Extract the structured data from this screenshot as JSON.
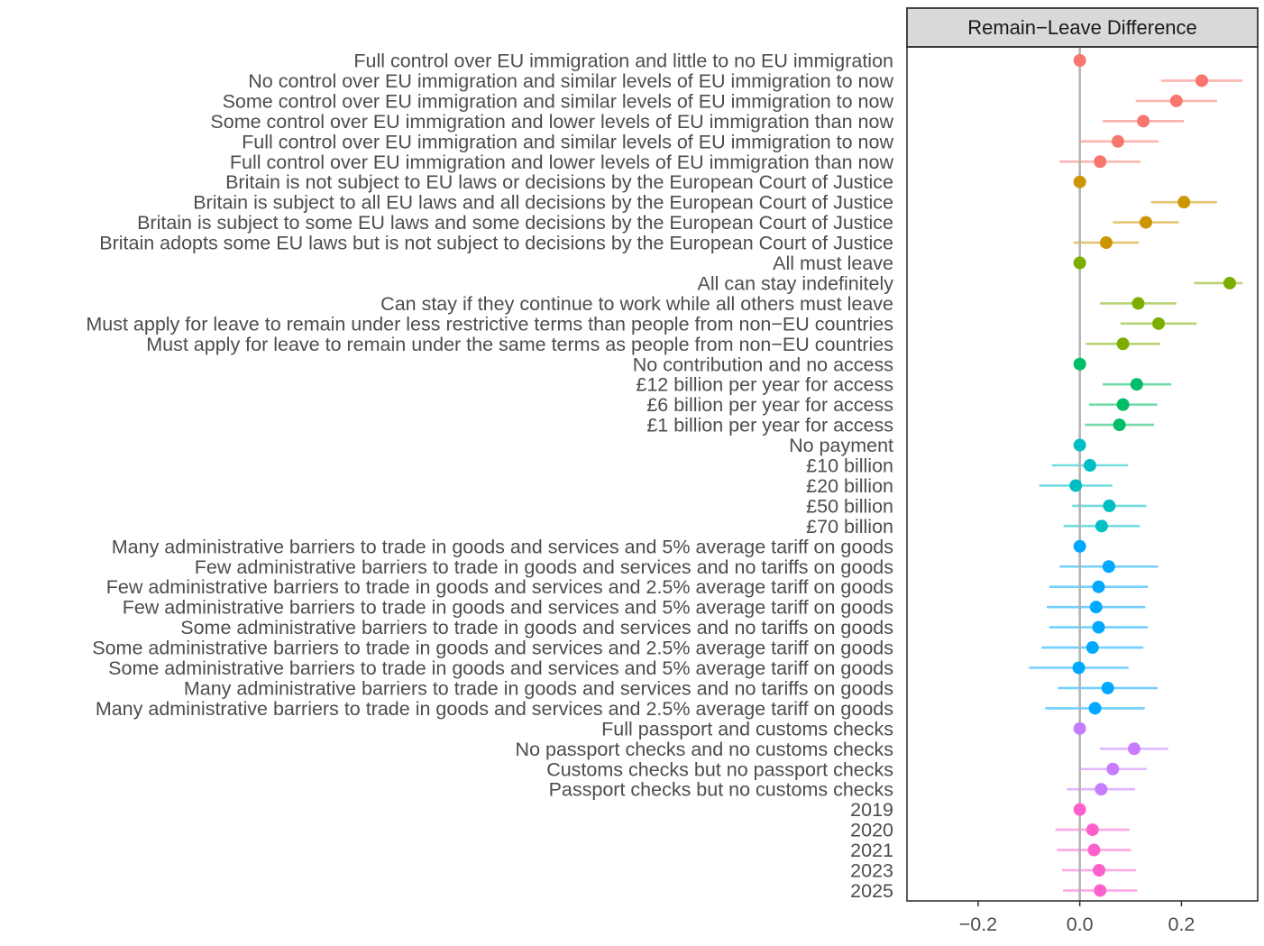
{
  "chart_data": {
    "type": "scatter",
    "title": "",
    "facet_label": "Remain−Leave Difference",
    "xlabel": "",
    "ylabel": "",
    "xlim": [
      -0.34,
      0.35
    ],
    "x_ticks": [
      -0.2,
      0.0,
      0.2
    ],
    "x_tick_labels": [
      "−0.2",
      "0.0",
      "0.2"
    ],
    "reference_line_x": 0,
    "grid": false,
    "legend": "none",
    "groups": [
      {
        "color": "#F8766D",
        "items": [
          {
            "label": "Full control over EU immigration and little to no EU immigration",
            "estimate": 0.0,
            "lower": null,
            "upper": null
          },
          {
            "label": "No control over EU immigration and similar levels of EU immigration to now",
            "estimate": 0.24,
            "lower": 0.16,
            "upper": 0.32
          },
          {
            "label": "Some control over EU immigration and similar levels of EU immigration to now",
            "estimate": 0.19,
            "lower": 0.11,
            "upper": 0.27
          },
          {
            "label": "Some control over EU immigration and lower levels of EU immigration than now",
            "estimate": 0.125,
            "lower": 0.045,
            "upper": 0.205
          },
          {
            "label": "Full control over EU immigration and similar levels of EU immigration to now",
            "estimate": 0.075,
            "lower": 0.0,
            "upper": 0.155
          },
          {
            "label": "Full control over EU immigration and lower levels of EU immigration than now",
            "estimate": 0.04,
            "lower": -0.04,
            "upper": 0.12
          }
        ]
      },
      {
        "color": "#CD9600",
        "items": [
          {
            "label": "Britain is not subject to EU laws or decisions by the European Court of Justice",
            "estimate": 0.0,
            "lower": null,
            "upper": null
          },
          {
            "label": "Britain is subject to all EU laws and all decisions by the European Court of Justice",
            "estimate": 0.205,
            "lower": 0.14,
            "upper": 0.27
          },
          {
            "label": "Britain is subject to some EU laws and some decisions by the European Court of Justice",
            "estimate": 0.13,
            "lower": 0.065,
            "upper": 0.195
          },
          {
            "label": "Britain adopts some EU laws but is not subject to decisions by the European Court of Justice",
            "estimate": 0.052,
            "lower": -0.012,
            "upper": 0.116
          }
        ]
      },
      {
        "color": "#7CAE00",
        "items": [
          {
            "label": "All must leave",
            "estimate": 0.0,
            "lower": null,
            "upper": null
          },
          {
            "label": "All can stay indefinitely",
            "estimate": 0.295,
            "lower": 0.225,
            "upper": 0.32
          },
          {
            "label": "Can stay if they continue to work while all others must leave",
            "estimate": 0.115,
            "lower": 0.04,
            "upper": 0.19
          },
          {
            "label": "Must apply for leave to remain under less restrictive terms than people from non−EU countries",
            "estimate": 0.155,
            "lower": 0.08,
            "upper": 0.23
          },
          {
            "label": "Must apply for leave to remain under the same terms as people from non−EU countries",
            "estimate": 0.085,
            "lower": 0.012,
            "upper": 0.158
          }
        ]
      },
      {
        "color": "#00BE67",
        "items": [
          {
            "label": "No contribution and no access",
            "estimate": 0.0,
            "lower": null,
            "upper": null
          },
          {
            "label": "£12 billion per year for access",
            "estimate": 0.112,
            "lower": 0.045,
            "upper": 0.18
          },
          {
            "label": "£6 billion per year for access",
            "estimate": 0.085,
            "lower": 0.018,
            "upper": 0.152
          },
          {
            "label": "£1 billion per year for access",
            "estimate": 0.078,
            "lower": 0.01,
            "upper": 0.146
          }
        ]
      },
      {
        "color": "#00BFC4",
        "items": [
          {
            "label": "No payment",
            "estimate": 0.0,
            "lower": null,
            "upper": null
          },
          {
            "label": "£10 billion",
            "estimate": 0.02,
            "lower": -0.055,
            "upper": 0.095
          },
          {
            "label": "£20 billion",
            "estimate": -0.008,
            "lower": -0.08,
            "upper": 0.064
          },
          {
            "label": "£50 billion",
            "estimate": 0.058,
            "lower": -0.015,
            "upper": 0.131
          },
          {
            "label": "£70 billion",
            "estimate": 0.043,
            "lower": -0.032,
            "upper": 0.118
          }
        ]
      },
      {
        "color": "#00A9FF",
        "items": [
          {
            "label": "Many administrative barriers to trade in goods and services and 5% average tariff on goods",
            "estimate": 0.0,
            "lower": null,
            "upper": null
          },
          {
            "label": "Few administrative barriers to trade in goods and services and no tariffs on goods",
            "estimate": 0.057,
            "lower": -0.04,
            "upper": 0.154
          },
          {
            "label": "Few administrative barriers to trade in goods and services and 2.5% average tariff on goods",
            "estimate": 0.037,
            "lower": -0.06,
            "upper": 0.134
          },
          {
            "label": "Few administrative barriers to trade in goods and services and 5% average tariff on goods",
            "estimate": 0.032,
            "lower": -0.065,
            "upper": 0.129
          },
          {
            "label": "Some administrative barriers to trade in goods and services and no tariffs on goods",
            "estimate": 0.037,
            "lower": -0.06,
            "upper": 0.134
          },
          {
            "label": "Some administrative barriers to trade in goods and services and 2.5% average tariff on goods",
            "estimate": 0.025,
            "lower": -0.075,
            "upper": 0.125
          },
          {
            "label": "Some administrative barriers to trade in goods and services and 5% average tariff on goods",
            "estimate": -0.002,
            "lower": -0.1,
            "upper": 0.096
          },
          {
            "label": "Many administrative barriers to trade in goods and services and no tariffs on goods",
            "estimate": 0.055,
            "lower": -0.043,
            "upper": 0.153
          },
          {
            "label": "Many administrative barriers to trade in goods and services and 2.5% average tariff on goods",
            "estimate": 0.03,
            "lower": -0.068,
            "upper": 0.128
          }
        ]
      },
      {
        "color": "#C77CFF",
        "items": [
          {
            "label": "Full passport and customs checks",
            "estimate": 0.0,
            "lower": null,
            "upper": null
          },
          {
            "label": "No passport checks and no customs checks",
            "estimate": 0.107,
            "lower": 0.04,
            "upper": 0.174
          },
          {
            "label": "Customs checks but no passport checks",
            "estimate": 0.065,
            "lower": -0.002,
            "upper": 0.132
          },
          {
            "label": "Passport checks but no customs checks",
            "estimate": 0.042,
            "lower": -0.025,
            "upper": 0.109
          }
        ]
      },
      {
        "color": "#FF61CC",
        "items": [
          {
            "label": "2019",
            "estimate": 0.0,
            "lower": null,
            "upper": null
          },
          {
            "label": "2020",
            "estimate": 0.025,
            "lower": -0.048,
            "upper": 0.098
          },
          {
            "label": "2021",
            "estimate": 0.028,
            "lower": -0.045,
            "upper": 0.101
          },
          {
            "label": "2023",
            "estimate": 0.038,
            "lower": -0.035,
            "upper": 0.111
          },
          {
            "label": "2025",
            "estimate": 0.04,
            "lower": -0.033,
            "upper": 0.113
          }
        ]
      }
    ]
  }
}
